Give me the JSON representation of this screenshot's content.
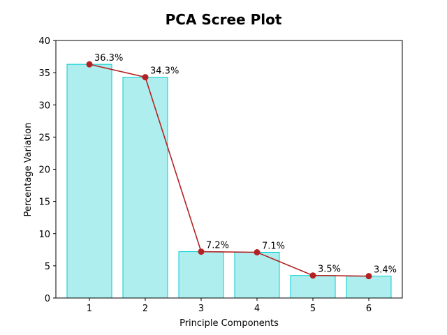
{
  "chart_data": {
    "type": "bar",
    "title": "PCA Scree Plot",
    "xlabel": "Principle Components",
    "ylabel": "Percentage Variation",
    "categories": [
      "1",
      "2",
      "3",
      "4",
      "5",
      "6"
    ],
    "values": [
      36.3,
      34.3,
      7.2,
      7.1,
      3.5,
      3.4
    ],
    "data_labels": [
      "36.3%",
      "34.3%",
      "7.2%",
      "7.1%",
      "3.5%",
      "3.4%"
    ],
    "ylim": [
      0,
      40
    ],
    "yticks": [
      0,
      5,
      10,
      15,
      20,
      25,
      30,
      35,
      40
    ],
    "grid": false,
    "colors": {
      "bar_fill": "#afeeee",
      "bar_edge": "#00ced1",
      "line": "#b22222",
      "marker": "#b22222"
    },
    "overlay_line": {
      "type": "line",
      "markers": true
    }
  }
}
